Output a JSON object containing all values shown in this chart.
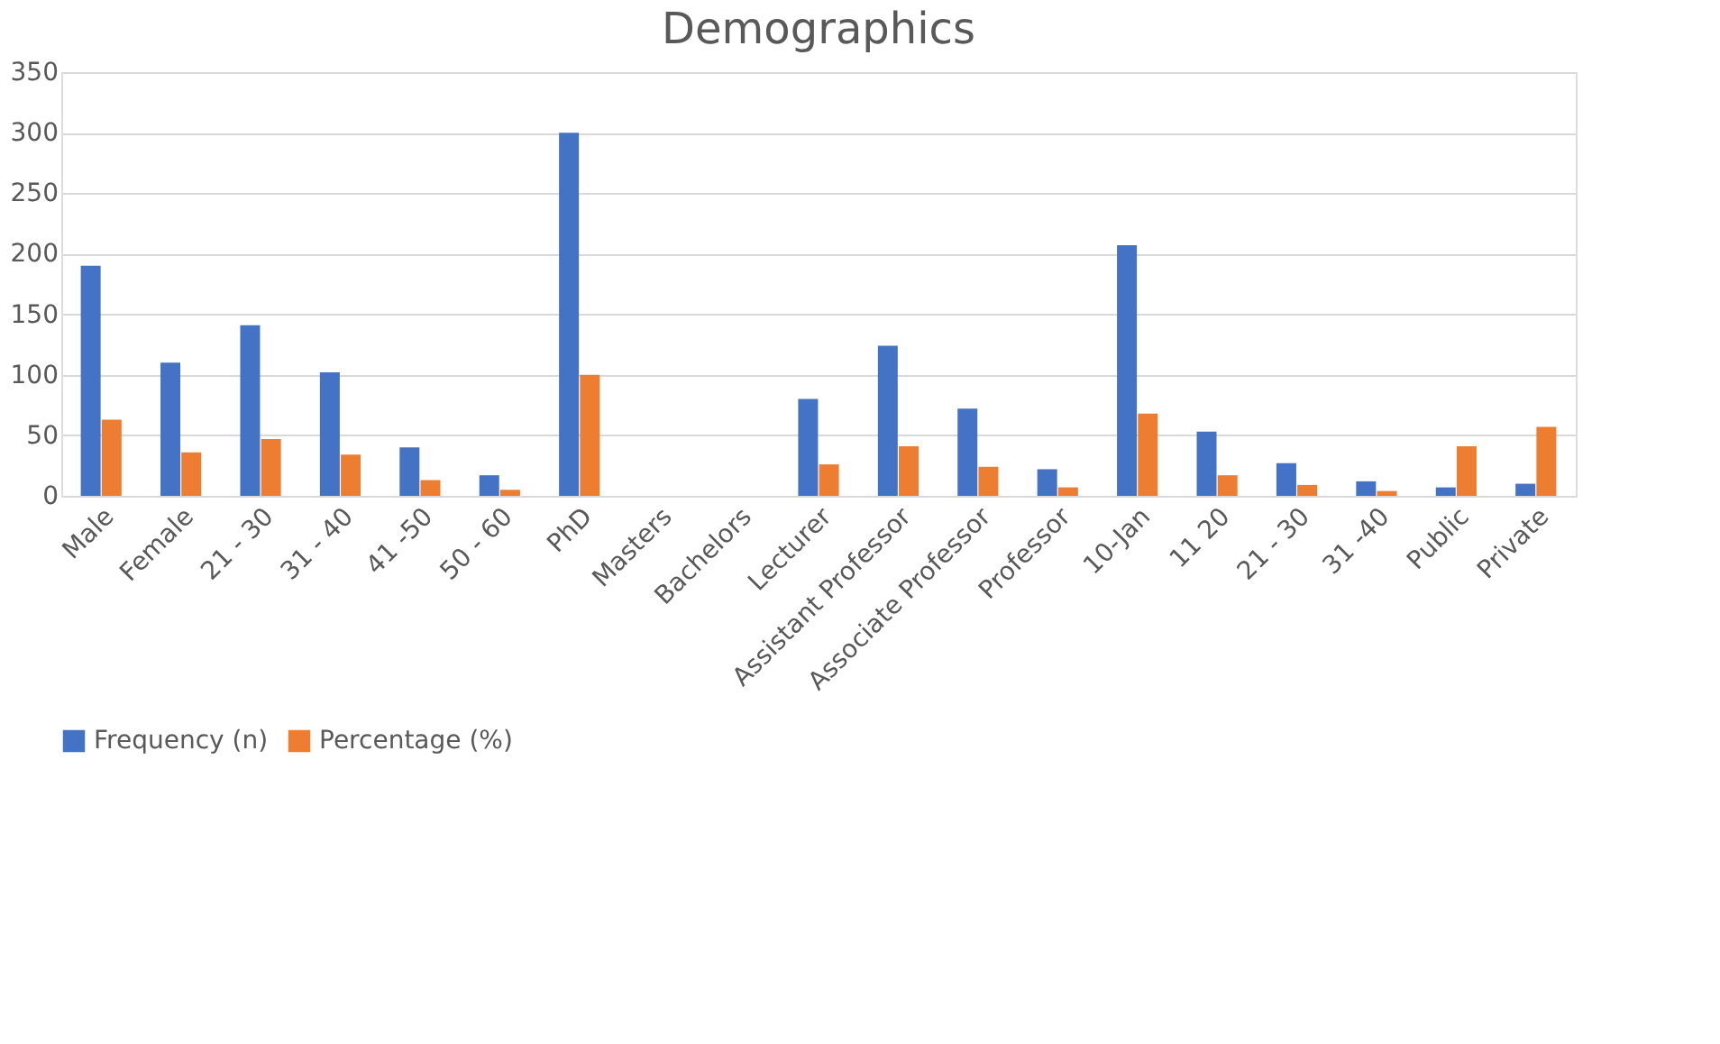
{
  "chart_data": {
    "type": "bar",
    "title": "Demographics",
    "categories": [
      "Male",
      "Female",
      "21 - 30",
      "31 - 40",
      "41 -50",
      "50 - 60",
      "PhD",
      "Masters",
      "Bachelors",
      "Lecturer",
      "Assistant Professor",
      "Associate Professor",
      "Professor",
      "10-Jan",
      "11 20",
      "21 - 30",
      "31 -40",
      "Public",
      "Private"
    ],
    "series": [
      {
        "name": "Frequency (n)",
        "color": "#4472c4",
        "values": [
          190,
          110,
          141,
          102,
          40,
          17,
          300,
          0,
          0,
          80,
          124,
          72,
          22,
          207,
          53,
          27,
          12,
          7,
          10
        ]
      },
      {
        "name": "Percentage (%)",
        "color": "#ed7d31",
        "values": [
          63,
          36,
          47,
          34,
          13,
          5,
          100,
          0,
          0,
          26,
          41,
          24,
          7,
          68,
          17,
          9,
          4,
          41,
          57
        ]
      }
    ],
    "ylim": [
      0,
      350
    ],
    "yticks": [
      0,
      50,
      100,
      150,
      200,
      250,
      300,
      350
    ],
    "grid": "y",
    "legend": "bottom"
  }
}
